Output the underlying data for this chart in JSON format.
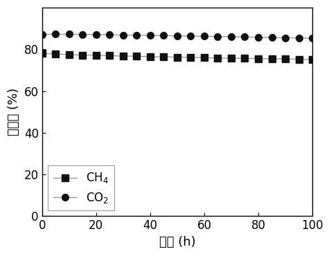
{
  "ch4_x": [
    0,
    5,
    10,
    15,
    20,
    25,
    30,
    35,
    40,
    45,
    50,
    55,
    60,
    65,
    70,
    75,
    80,
    85,
    90,
    95,
    100
  ],
  "ch4_y": [
    78.0,
    77.8,
    77.5,
    77.3,
    77.2,
    77.0,
    76.8,
    76.7,
    76.5,
    76.4,
    76.3,
    76.2,
    76.0,
    75.9,
    75.8,
    75.7,
    75.6,
    75.5,
    75.4,
    75.3,
    75.2
  ],
  "co2_x": [
    0,
    5,
    10,
    15,
    20,
    25,
    30,
    35,
    40,
    45,
    50,
    55,
    60,
    65,
    70,
    75,
    80,
    85,
    90,
    95,
    100
  ],
  "co2_y": [
    87.2,
    87.3,
    87.3,
    87.2,
    87.1,
    87.0,
    86.9,
    86.8,
    86.7,
    86.6,
    86.5,
    86.4,
    86.3,
    86.2,
    86.1,
    86.0,
    85.8,
    85.7,
    85.6,
    85.5,
    85.3
  ],
  "line_color": "#999999",
  "marker_color": "#111111",
  "xlabel": "时间 (h)",
  "ylabel": "转化率 (%)",
  "xlim": [
    0,
    100
  ],
  "ylim": [
    0,
    100
  ],
  "xticks": [
    0,
    20,
    40,
    60,
    80,
    100
  ],
  "yticks": [
    0,
    20,
    40,
    60,
    80
  ],
  "ch4_label": "CH$_4$",
  "co2_label": "CO$_2$",
  "font_size": 12,
  "label_font_size": 13,
  "marker_size": 7,
  "line_width": 1.0,
  "line_style": "-"
}
